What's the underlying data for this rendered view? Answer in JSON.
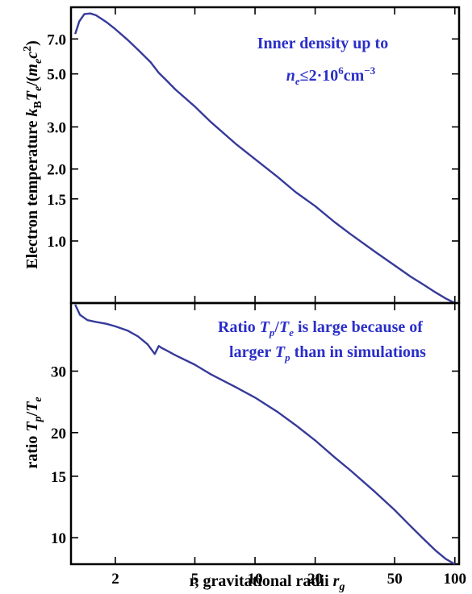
{
  "chart_data": [
    {
      "type": "line",
      "panel": "top",
      "ylabel": {
        "main": "Electron temperature ",
        "sym": "k",
        "sub1": "B",
        "sym2": "T",
        "sub2": "e",
        "rest1": "/(",
        "sym3": "m",
        "sub3": "e",
        "rest2": "c",
        "sup": "2",
        "rest3": ")"
      },
      "xscale": "log",
      "yscale": "log",
      "xlim": [
        1.2,
        105
      ],
      "ylim": [
        0.55,
        9.5
      ],
      "yticks": [
        1.0,
        1.5,
        2.0,
        3.0,
        5.0,
        7.0
      ],
      "ytick_labels": [
        "1.0",
        "1.5",
        "2.0",
        "3.0",
        "5.0",
        "7.0"
      ],
      "annotation": {
        "line1": "Inner density up to",
        "line2_sym": "n",
        "line2_sub": "e",
        "line2_rest": "≤2·10",
        "line2_sup": "6",
        "line2_unit": "cm",
        "line2_unit_sup": "−3"
      },
      "series": [
        {
          "color": "#363a9a",
          "x": [
            1.26,
            1.32,
            1.4,
            1.5,
            1.6,
            1.8,
            2.0,
            2.3,
            2.6,
            3.0,
            3.3,
            3.6,
            4.0,
            5.0,
            6.0,
            8.0,
            10,
            13,
            16,
            20,
            25,
            30,
            40,
            50,
            60,
            70,
            80,
            90,
            100
          ],
          "y": [
            7.35,
            8.3,
            8.9,
            8.95,
            8.8,
            8.25,
            7.7,
            6.95,
            6.3,
            5.6,
            5.05,
            4.7,
            4.3,
            3.65,
            3.15,
            2.55,
            2.2,
            1.85,
            1.6,
            1.4,
            1.2,
            1.07,
            0.9,
            0.79,
            0.71,
            0.655,
            0.61,
            0.575,
            0.55
          ]
        }
      ]
    },
    {
      "type": "line",
      "panel": "bottom",
      "ylabel": {
        "main": "ratio ",
        "sym": "T",
        "sub1": "p",
        "slash": "/",
        "sym2": "T",
        "sub2": "e"
      },
      "xlabel": {
        "main": "r, gravitational radii ",
        "sym": "r",
        "sub": "g"
      },
      "xscale": "log",
      "yscale": "log",
      "xlim": [
        1.2,
        105
      ],
      "ylim": [
        8.4,
        47
      ],
      "xticks": [
        2,
        5,
        10,
        20,
        50,
        100
      ],
      "xtick_labels": [
        "2",
        "5",
        "10",
        "20",
        "50",
        "100"
      ],
      "yticks": [
        10,
        15,
        20,
        30
      ],
      "ytick_labels": [
        "10",
        "15",
        "20",
        "30"
      ],
      "annotation": {
        "line1a": "Ratio ",
        "line1_sym": "T",
        "line1_sub": "p",
        "line1_slash": "/",
        "line1_sym2": "T",
        "line1_sub2": "e",
        "line1_rest": " is large because of",
        "line2a": "larger ",
        "line2_sym": "T",
        "line2_sub": "p",
        "line2_rest": " than in simulations"
      },
      "series": [
        {
          "color": "#363a9a",
          "x": [
            1.26,
            1.33,
            1.45,
            1.6,
            1.8,
            2.0,
            2.3,
            2.6,
            2.9,
            3.15,
            3.3,
            3.4,
            3.6,
            4.0,
            5.0,
            6.0,
            8.0,
            10,
            13,
            16,
            20,
            25,
            30,
            40,
            50,
            60,
            70,
            80,
            90,
            100
          ],
          "y": [
            46.5,
            43.5,
            42.0,
            41.5,
            41.0,
            40.3,
            39.2,
            37.7,
            35.8,
            33.6,
            35.4,
            35.0,
            34.4,
            33.3,
            31.3,
            29.4,
            27.0,
            25.2,
            22.9,
            21.0,
            19.0,
            17.0,
            15.6,
            13.5,
            12.0,
            10.8,
            9.9,
            9.2,
            8.7,
            8.4
          ]
        }
      ]
    }
  ]
}
